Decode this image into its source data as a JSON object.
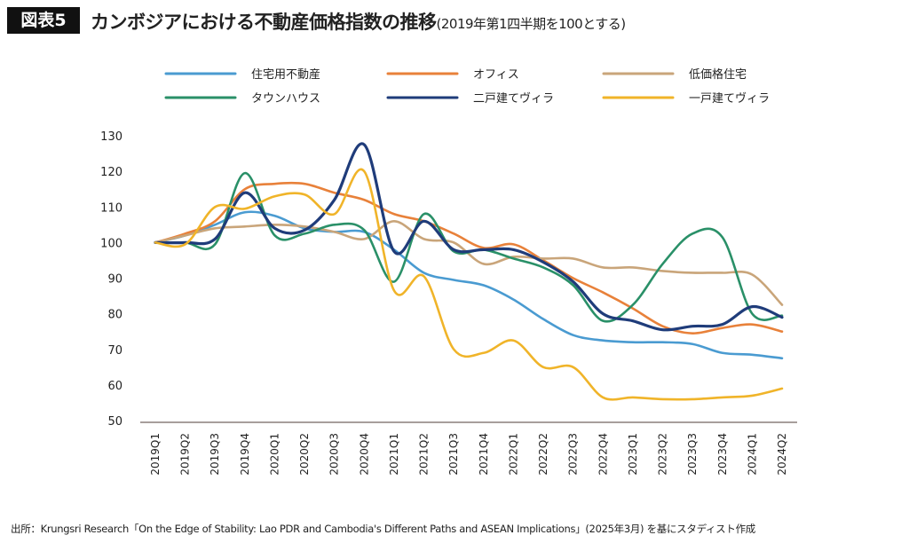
{
  "header": {
    "badge": "図表5",
    "title": "カンボジアにおける不動産価格指数の推移",
    "subtitle": "(2019年第1四半期を100とする)"
  },
  "source": "出所：Krungsri Research「On the Edge of Stability: Lao PDR and  Cambodia's Different Paths and ASEAN Implications」(2025年3月) を基にスタディスト作成",
  "chart_data": {
    "type": "line",
    "title": "カンボジアにおける不動産価格指数の推移(2019年第1四半期を100とする)",
    "xlabel": "",
    "ylabel": "",
    "ylim": [
      50,
      130
    ],
    "yticks": [
      50,
      60,
      70,
      80,
      90,
      100,
      110,
      120,
      130
    ],
    "grid": false,
    "legend_position": "top",
    "smoothed": true,
    "categories": [
      "2019Q1",
      "2019Q2",
      "2019Q3",
      "2019Q4",
      "2020Q1",
      "2020Q2",
      "2020Q3",
      "2020Q4",
      "2021Q1",
      "2021Q2",
      "2021Q3",
      "2021Q4",
      "2022Q1",
      "2022Q2",
      "2022Q3",
      "2022Q4",
      "2023Q1",
      "2023Q2",
      "2023Q3",
      "2023Q4",
      "2024Q1",
      "2024Q2"
    ],
    "series": [
      {
        "name": "住宅用不動産",
        "color": "#4a9bd1",
        "values": [
          100,
          102,
          105,
          108.5,
          107.5,
          104,
          103,
          103,
          98,
          91.5,
          89.5,
          88,
          84,
          78.5,
          74,
          72.5,
          72,
          72,
          71.5,
          69,
          68.5,
          67.5
        ]
      },
      {
        "name": "オフィス",
        "color": "#e8813a",
        "values": [
          100,
          102.5,
          106,
          115,
          116.5,
          116.5,
          114,
          112,
          108,
          106,
          102.5,
          98.5,
          99.5,
          95,
          90,
          86,
          81.5,
          76.5,
          74.5,
          76,
          77,
          75
        ]
      },
      {
        "name": "低価格住宅",
        "color": "#c9a57a",
        "values": [
          100,
          102,
          104,
          104.5,
          105,
          104.5,
          103,
          101,
          106,
          101,
          100,
          94,
          96,
          95.5,
          95.5,
          93,
          93,
          92,
          91.5,
          91.5,
          91,
          82.5
        ]
      },
      {
        "name": "タウンハウス",
        "color": "#2a9068",
        "values": [
          100,
          100,
          99.5,
          119.5,
          102,
          102.5,
          105,
          103.5,
          89,
          108,
          97.5,
          98,
          95.5,
          93,
          88,
          78,
          82.5,
          94,
          102.5,
          101.5,
          80,
          79.5
        ]
      },
      {
        "name": "二戸建てヴィラ",
        "color": "#1f3c7a",
        "values": [
          100,
          100,
          101,
          114,
          104,
          103.5,
          112,
          127.5,
          97.5,
          106,
          98,
          98,
          98,
          94.5,
          89,
          80,
          78,
          75.5,
          76.5,
          77,
          82,
          79
        ]
      },
      {
        "name": "一戸建てヴィラ",
        "color": "#f0b429",
        "values": [
          100,
          99.5,
          110,
          109.5,
          113,
          113.5,
          108,
          120,
          86.5,
          90.5,
          70,
          69,
          72.5,
          65,
          65,
          56.5,
          56.5,
          56,
          56,
          56.5,
          57,
          59
        ]
      }
    ]
  }
}
